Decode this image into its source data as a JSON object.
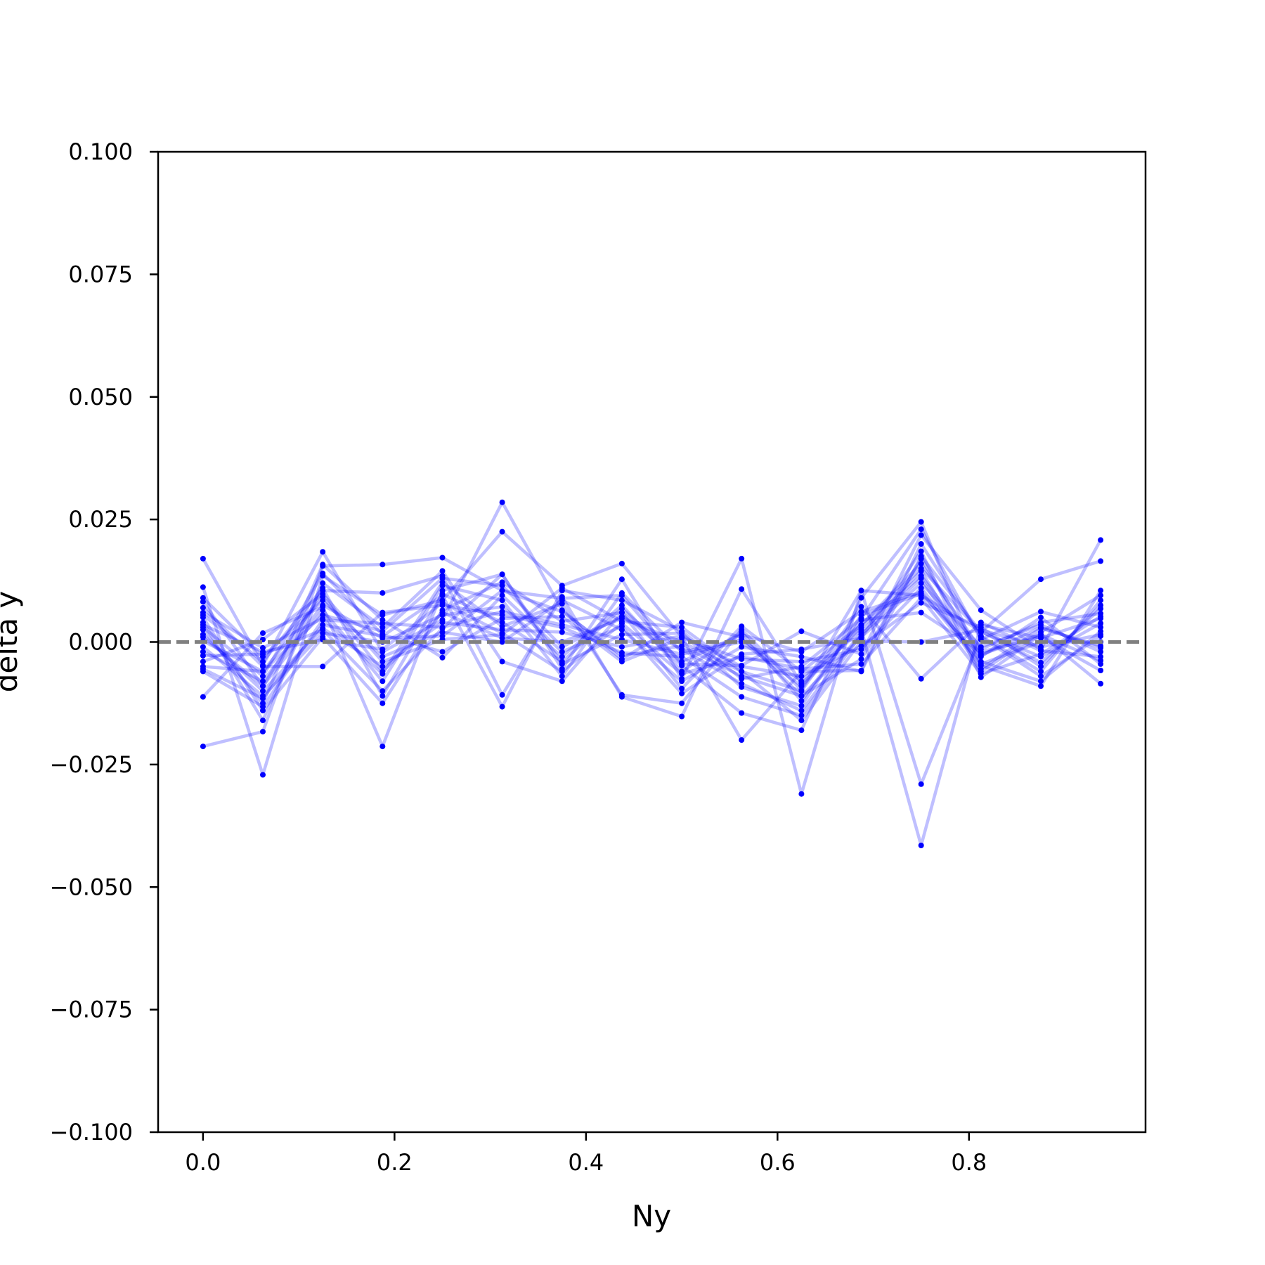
{
  "chart_data": {
    "type": "line",
    "title": "",
    "xlabel": "Ny",
    "ylabel": "delta y",
    "xlim": [
      -0.046875,
      0.984375
    ],
    "ylim": [
      -0.1,
      0.1
    ],
    "grid": false,
    "x_ticks": [
      "0.0",
      "0.2",
      "0.4",
      "0.6",
      "0.8"
    ],
    "x_tick_values": [
      0.0,
      0.2,
      0.4,
      0.6,
      0.8
    ],
    "y_ticks": [
      "0.100",
      "0.075",
      "0.050",
      "0.025",
      "0.000",
      "−0.025",
      "−0.050",
      "−0.075",
      "−0.100"
    ],
    "y_tick_values": [
      0.1,
      0.075,
      0.05,
      0.025,
      0.0,
      -0.025,
      -0.05,
      -0.075,
      -0.1
    ],
    "reference_line": {
      "y": 0.0,
      "style": "dashed",
      "color": "#808080"
    },
    "series_color": "#0000ff",
    "line_alpha": 0.25,
    "x": [
      0.0,
      0.0625,
      0.125,
      0.1875,
      0.25,
      0.3125,
      0.375,
      0.4375,
      0.5,
      0.5625,
      0.625,
      0.6875,
      0.75,
      0.8125,
      0.875,
      0.9375
    ],
    "series": [
      {
        "values": [
          -0.0213,
          -0.0183,
          0.0155,
          0.0158,
          0.0172,
          0.0105,
          0.0089,
          0.0095,
          -0.0045,
          -0.0048,
          0.0022,
          -0.0025,
          0.0218,
          0.0065,
          -0.0015,
          0.0208
        ]
      },
      {
        "values": [
          0.017,
          -0.0048,
          0.0184,
          -0.002,
          0.0045,
          0.0285,
          0.0065,
          -0.0035,
          0.004,
          0.001,
          -0.011,
          -0.0035,
          0.017,
          -0.0028,
          0.003,
          -0.0012
        ]
      },
      {
        "values": [
          0.0112,
          -0.0271,
          0.0135,
          0.0055,
          0.0085,
          0.0225,
          0.0115,
          0.016,
          0.001,
          -0.02,
          -0.006,
          0.0035,
          0.015,
          0.002,
          0.0128,
          0.0165
        ]
      },
      {
        "values": [
          -0.0112,
          0.0018,
          0.0072,
          -0.0213,
          0.0105,
          0.0138,
          -0.0055,
          0.0128,
          -0.0075,
          0.017,
          -0.031,
          0.0105,
          -0.029,
          0.0012,
          -0.006,
          0.0085
        ]
      },
      {
        "values": [
          0.0082,
          -0.009,
          0.0105,
          0.01,
          0.0135,
          -0.0108,
          0.0092,
          -0.0112,
          -0.0152,
          0.0108,
          -0.0085,
          0.0025,
          -0.0415,
          0.0035,
          0.0008,
          0.0048
        ]
      },
      {
        "values": [
          0.005,
          -0.014,
          0.001,
          -0.0125,
          0.0065,
          0.0122,
          0.0042,
          0.006,
          -0.0048,
          -0.0145,
          -0.018,
          0.009,
          0.0245,
          -0.0048,
          -0.009,
          0.0105
        ]
      },
      {
        "values": [
          -0.0055,
          -0.0115,
          0.0035,
          0.0012,
          0.0095,
          -0.0132,
          0.0105,
          0.0085,
          0.0022,
          -0.0075,
          -0.005,
          0.0048,
          0.023,
          0.0005,
          0.0062,
          0.003
        ]
      },
      {
        "values": [
          0.0025,
          -0.0125,
          0.0158,
          0.0045,
          -0.0032,
          0.0095,
          -0.002,
          0.0032,
          -0.0105,
          -0.0025,
          -0.0015,
          0.0008,
          0.0185,
          -0.0072,
          0.0015,
          -0.0085
        ]
      },
      {
        "values": [
          0.006,
          -0.0012,
          0.0048,
          -0.0065,
          0.0122,
          0.0032,
          0.0078,
          -0.0108,
          -0.0125,
          0.0025,
          -0.0098,
          0.0105,
          0.0095,
          0.0022,
          -0.0042,
          0.0068
        ]
      },
      {
        "values": [
          -0.0028,
          -0.0025,
          0.0025,
          -0.01,
          0.0028,
          0.0138,
          -0.0045,
          0.0015,
          0.0018,
          -0.0092,
          -0.013,
          0.0055,
          0.0098,
          -0.003,
          0.005,
          -0.0045
        ]
      },
      {
        "values": [
          0.004,
          -0.016,
          0.012,
          0.003,
          0.0145,
          -0.004,
          -0.008,
          0.006,
          -0.0095,
          0.0032,
          -0.006,
          -0.0058,
          0.02,
          0.001,
          -0.007,
          0.0012
        ]
      },
      {
        "values": [
          0.007,
          -0.005,
          -0.005,
          0.006,
          0.0075,
          0.0055,
          0.003,
          -0.0022,
          -0.003,
          -0.0112,
          -0.015,
          0.0015,
          0.013,
          -0.006,
          0.002,
          0.0095
        ]
      },
      {
        "values": [
          -0.004,
          0.0005,
          0.0098,
          -0.004,
          0.0005,
          0.0015,
          0.011,
          0.0042,
          0.003,
          -0.006,
          -0.01,
          0.0072,
          -0.0075,
          0.004,
          -0.0018,
          -0.003
        ]
      },
      {
        "values": [
          0.001,
          -0.009,
          0.0065,
          -0.008,
          0.0115,
          0.0085,
          -0.007,
          0.01,
          -0.002,
          0.0005,
          -0.008,
          0.0035,
          0.016,
          -0.0015,
          0.004,
          0.0058
        ]
      },
      {
        "values": [
          0.003,
          -0.007,
          0.014,
          0.0015,
          -0.002,
          0.0048,
          0.0052,
          -0.004,
          0.0008,
          -0.0035,
          -0.004,
          -0.0015,
          0.011,
          -0.004,
          -0.008,
          0.0022
        ]
      },
      {
        "values": [
          -0.001,
          -0.011,
          0.0018,
          0.0,
          0.0055,
          0.0072,
          -0.003,
          0.0075,
          -0.006,
          0.002,
          -0.012,
          0.0045,
          0.006,
          -0.002,
          0.001,
          -0.0058
        ]
      },
      {
        "values": [
          0.009,
          -0.003,
          0.0085,
          -0.003,
          0.002,
          0.0,
          0.0085,
          0.0025,
          -0.008,
          -0.001,
          -0.003,
          -0.006,
          0.0175,
          0.002,
          -0.003,
          0.0038
        ]
      },
      {
        "values": [
          -0.005,
          -0.006,
          0.0055,
          0.0022,
          0.013,
          0.0115,
          -0.001,
          0.0052,
          -0.0015,
          -0.0085,
          -0.014,
          0.002,
          0.0145,
          -0.0055,
          0.0028,
          -0.0008
        ]
      },
      {
        "values": [
          0.0015,
          -0.01,
          0.0028,
          -0.005,
          0.004,
          0.0025,
          0.002,
          -0.001,
          0.0012,
          -0.005,
          -0.007,
          -0.0008,
          0.008,
          0.003,
          -0.005,
          0.0075
        ]
      },
      {
        "values": [
          0.0055,
          -0.004,
          0.011,
          -0.011,
          0.0098,
          0.004,
          -0.004,
          0.0068,
          -0.004,
          0.0015,
          -0.002,
          0.0062,
          0.0102,
          -0.0045,
          0.0,
          0.0
        ]
      },
      {
        "values": [
          -0.002,
          -0.008,
          0.0075,
          0.0008,
          0.0012,
          0.0105,
          0.0062,
          -0.0028,
          -0.0008,
          -0.007,
          -0.011,
          0.001,
          0.012,
          -0.001,
          0.0035,
          -0.002
        ]
      },
      {
        "values": [
          0.0035,
          -0.002,
          0.0005,
          -0.0015,
          0.008,
          0.0018,
          -0.006,
          0.0038,
          -0.0065,
          -0.003,
          -0.0055,
          -0.0045,
          0.009,
          -0.0065,
          -0.0025,
          0.0052
        ]
      },
      {
        "values": [
          -0.006,
          -0.0132,
          0.0045,
          0.0038,
          0.003,
          0.0062,
          0.0035,
          0.0005,
          -0.0025,
          0.0,
          -0.009,
          0.003,
          0.0135,
          -0.0025,
          0.0015,
          -0.0038
        ]
      },
      {
        "values": [
          0.0002,
          -0.006,
          0.0092,
          -0.006,
          0.006,
          0.0008,
          0.0,
          0.0048,
          0.0,
          -0.006,
          -0.016,
          0.0002,
          0.0,
          0.0025,
          -0.001,
          0.0015
        ]
      }
    ]
  }
}
